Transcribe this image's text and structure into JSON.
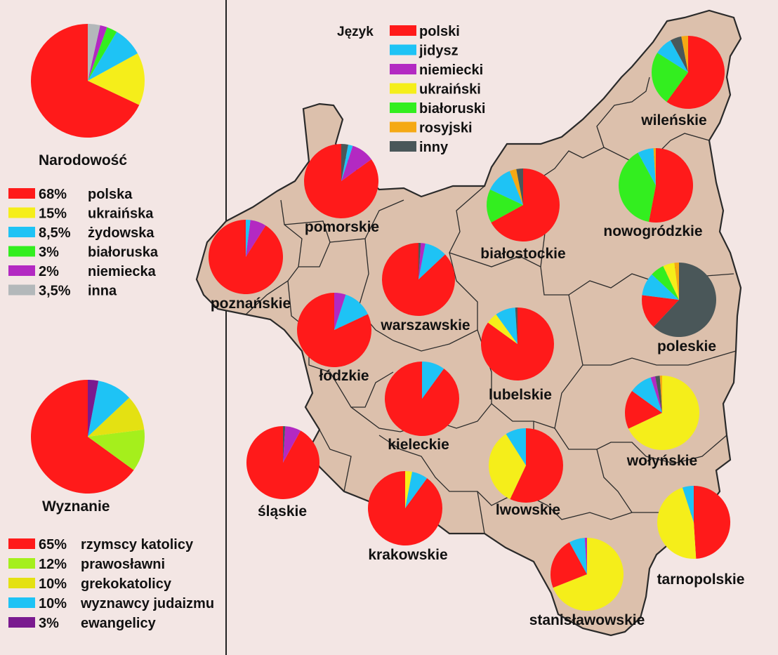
{
  "colors": {
    "background": "#f3e6e4",
    "map_fill": "#dcc0ac",
    "border": "#2a2a2a",
    "polski": "#ff1a1a",
    "jidysz": "#1ec3f5",
    "niemiecki": "#b329c2",
    "ukrainski": "#f5ee1a",
    "bialoruski": "#33ee1f",
    "rosyjski": "#f5a914",
    "inny": "#4a5759",
    "inna_gray": "#b3b8ba",
    "prawoslawni": "#a5ef1c",
    "grekokatolicy": "#e4e112",
    "ewangelicy": "#7a1a8f"
  },
  "nationality": {
    "title": "Narodowość",
    "items": [
      {
        "pct": "68%",
        "label": "polska",
        "value": 68,
        "color": "#ff1a1a"
      },
      {
        "pct": "15%",
        "label": "ukraińska",
        "value": 15,
        "color": "#f5ee1a"
      },
      {
        "pct": "8,5%",
        "label": "żydowska",
        "value": 8.5,
        "color": "#1ec3f5"
      },
      {
        "pct": "3%",
        "label": "białoruska",
        "value": 3,
        "color": "#33ee1f"
      },
      {
        "pct": "2%",
        "label": "niemiecka",
        "value": 2,
        "color": "#b329c2"
      },
      {
        "pct": "3,5%",
        "label": "inna",
        "value": 3.5,
        "color": "#b3b8ba"
      }
    ]
  },
  "religion": {
    "title": "Wyznanie",
    "items": [
      {
        "pct": "65%",
        "label": "rzymscy katolicy",
        "value": 65,
        "color": "#ff1a1a"
      },
      {
        "pct": "12%",
        "label": "prawosławni",
        "value": 12,
        "color": "#a5ef1c"
      },
      {
        "pct": "10%",
        "label": "grekokatolicy",
        "value": 10,
        "color": "#e4e112"
      },
      {
        "pct": "10%",
        "label": "wyznawcy judaizmu",
        "value": 10,
        "color": "#1ec3f5"
      },
      {
        "pct": "3%",
        "label": "ewangelicy",
        "value": 3,
        "color": "#7a1a8f"
      }
    ]
  },
  "language_legend": {
    "title": "Język",
    "items": [
      {
        "key": "polski",
        "label": "polski",
        "color": "#ff1a1a"
      },
      {
        "key": "jidysz",
        "label": "jidysz",
        "color": "#1ec3f5"
      },
      {
        "key": "niemiecki",
        "label": "niemiecki",
        "color": "#b329c2"
      },
      {
        "key": "ukrainski",
        "label": "ukraiński",
        "color": "#f5ee1a"
      },
      {
        "key": "bialoruski",
        "label": "białoruski",
        "color": "#33ee1f"
      },
      {
        "key": "rosyjski",
        "label": "rosyjski",
        "color": "#f5a914"
      },
      {
        "key": "inny",
        "label": "inny",
        "color": "#4a5759"
      }
    ]
  },
  "voivodeships": [
    {
      "name": "wileńskie",
      "slices": [
        {
          "k": "polski",
          "v": 60
        },
        {
          "k": "bialoruski",
          "v": 24
        },
        {
          "k": "jidysz",
          "v": 8
        },
        {
          "k": "inny",
          "v": 5
        },
        {
          "k": "rosyjski",
          "v": 3
        }
      ]
    },
    {
      "name": "nowogródzkie",
      "slices": [
        {
          "k": "polski",
          "v": 53
        },
        {
          "k": "bialoruski",
          "v": 39
        },
        {
          "k": "jidysz",
          "v": 7
        },
        {
          "k": "rosyjski",
          "v": 1
        }
      ]
    },
    {
      "name": "białostockie",
      "slices": [
        {
          "k": "polski",
          "v": 67
        },
        {
          "k": "bialoruski",
          "v": 15
        },
        {
          "k": "jidysz",
          "v": 12
        },
        {
          "k": "rosyjski",
          "v": 3
        },
        {
          "k": "inny",
          "v": 3
        }
      ]
    },
    {
      "name": "pomorskie",
      "slices": [
        {
          "k": "polski",
          "v": 85
        },
        {
          "k": "niemiecki",
          "v": 10
        },
        {
          "k": "jidysz",
          "v": 2
        },
        {
          "k": "inny",
          "v": 3
        }
      ]
    },
    {
      "name": "poznańskie",
      "slices": [
        {
          "k": "polski",
          "v": 91
        },
        {
          "k": "niemiecki",
          "v": 7
        },
        {
          "k": "jidysz",
          "v": 2
        }
      ]
    },
    {
      "name": "warszawskie",
      "slices": [
        {
          "k": "polski",
          "v": 87
        },
        {
          "k": "jidysz",
          "v": 10
        },
        {
          "k": "niemiecki",
          "v": 2
        },
        {
          "k": "inny",
          "v": 1
        }
      ]
    },
    {
      "name": "łódzkie",
      "slices": [
        {
          "k": "polski",
          "v": 82
        },
        {
          "k": "jidysz",
          "v": 13
        },
        {
          "k": "niemiecki",
          "v": 5
        }
      ]
    },
    {
      "name": "lubelskie",
      "slices": [
        {
          "k": "polski",
          "v": 85
        },
        {
          "k": "ukrainski",
          "v": 5
        },
        {
          "k": "jidysz",
          "v": 9
        },
        {
          "k": "inny",
          "v": 1
        }
      ]
    },
    {
      "name": "poleskie",
      "slices": [
        {
          "k": "inny",
          "v": 62
        },
        {
          "k": "polski",
          "v": 15
        },
        {
          "k": "jidysz",
          "v": 10
        },
        {
          "k": "bialoruski",
          "v": 6
        },
        {
          "k": "ukrainski",
          "v": 5
        },
        {
          "k": "rosyjski",
          "v": 2
        }
      ]
    },
    {
      "name": "kieleckie",
      "slices": [
        {
          "k": "polski",
          "v": 90
        },
        {
          "k": "jidysz",
          "v": 10
        }
      ]
    },
    {
      "name": "śląskie",
      "slices": [
        {
          "k": "polski",
          "v": 92
        },
        {
          "k": "niemiecki",
          "v": 7
        },
        {
          "k": "inny",
          "v": 1
        }
      ]
    },
    {
      "name": "krakowskie",
      "slices": [
        {
          "k": "polski",
          "v": 90
        },
        {
          "k": "jidysz",
          "v": 7
        },
        {
          "k": "ukrainski",
          "v": 3
        }
      ]
    },
    {
      "name": "lwowskie",
      "slices": [
        {
          "k": "polski",
          "v": 57
        },
        {
          "k": "ukrainski",
          "v": 34
        },
        {
          "k": "jidysz",
          "v": 9
        }
      ]
    },
    {
      "name": "wołyńskie",
      "slices": [
        {
          "k": "ukrainski",
          "v": 68
        },
        {
          "k": "polski",
          "v": 17
        },
        {
          "k": "jidysz",
          "v": 10
        },
        {
          "k": "niemiecki",
          "v": 2
        },
        {
          "k": "inny",
          "v": 2
        },
        {
          "k": "rosyjski",
          "v": 1
        }
      ]
    },
    {
      "name": "tarnopolskie",
      "slices": [
        {
          "k": "polski",
          "v": 49
        },
        {
          "k": "ukrainski",
          "v": 46
        },
        {
          "k": "jidysz",
          "v": 5
        }
      ]
    },
    {
      "name": "stanisławowskie",
      "slices": [
        {
          "k": "ukrainski",
          "v": 69
        },
        {
          "k": "polski",
          "v": 23
        },
        {
          "k": "jidysz",
          "v": 7
        },
        {
          "k": "niemiecki",
          "v": 1
        }
      ]
    }
  ]
}
